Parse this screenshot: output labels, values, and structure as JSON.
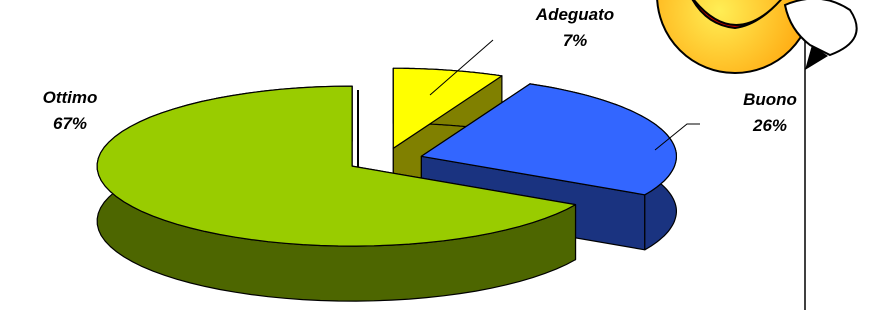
{
  "chart_data": {
    "type": "pie",
    "categories": [
      "Adeguato",
      "Buono",
      "Ottimo"
    ],
    "values": [
      7,
      26,
      67
    ],
    "value_labels": [
      "7%",
      "26%",
      "67%"
    ],
    "colors": [
      "#ffff00",
      "#3366ff",
      "#99cc00"
    ]
  }
}
